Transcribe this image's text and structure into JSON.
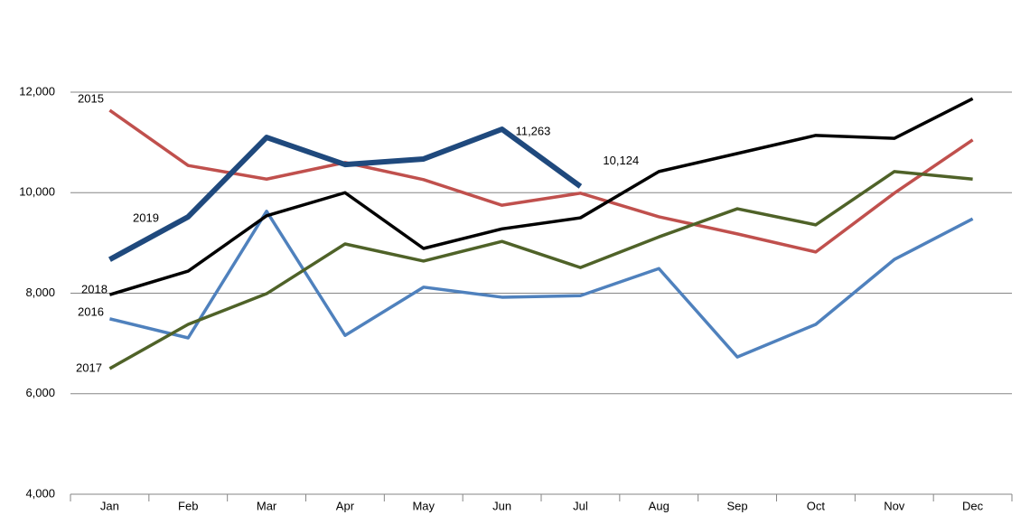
{
  "chart_data": {
    "type": "line",
    "categories": [
      "Jan",
      "Feb",
      "Mar",
      "Apr",
      "May",
      "Jun",
      "Jul",
      "Aug",
      "Sep",
      "Oct",
      "Nov",
      "Dec"
    ],
    "series": [
      {
        "name": "2015",
        "color": "#c0504d",
        "width": 3.5,
        "values": [
          11640,
          10540,
          10270,
          10600,
          10260,
          9750,
          9990,
          9520,
          9180,
          8820,
          9990,
          11050
        ]
      },
      {
        "name": "2016",
        "color": "#4f81bd",
        "width": 3.5,
        "values": [
          7490,
          7110,
          9630,
          7160,
          8120,
          7920,
          7950,
          8490,
          6730,
          7380,
          8670,
          9480
        ]
      },
      {
        "name": "2017",
        "color": "#4f6228",
        "width": 3.5,
        "values": [
          6500,
          7380,
          7990,
          8980,
          8640,
          9030,
          8510,
          9120,
          9680,
          9360,
          10420,
          10270
        ]
      },
      {
        "name": "2018",
        "color": "#000000",
        "width": 3.5,
        "values": [
          7970,
          8440,
          9540,
          10000,
          8890,
          9280,
          9500,
          10420,
          10780,
          11140,
          11080,
          11870
        ]
      },
      {
        "name": "2019",
        "color": "#1f497d",
        "width": 6,
        "values": [
          8670,
          9520,
          11100,
          10560,
          10670,
          11263,
          10124,
          null,
          null,
          null,
          null,
          null
        ],
        "value_labels": [
          null,
          null,
          null,
          null,
          null,
          "11,263",
          "10,124",
          null,
          null,
          null,
          null,
          null
        ]
      }
    ],
    "ylim": [
      4000,
      12000
    ],
    "yticks": [
      {
        "value": 4000,
        "label": "4,000"
      },
      {
        "value": 6000,
        "label": "6,000"
      },
      {
        "value": 8000,
        "label": "8,000"
      },
      {
        "value": 10000,
        "label": "10,000"
      },
      {
        "value": 12000,
        "label": "12,000"
      }
    ],
    "grid": true
  }
}
